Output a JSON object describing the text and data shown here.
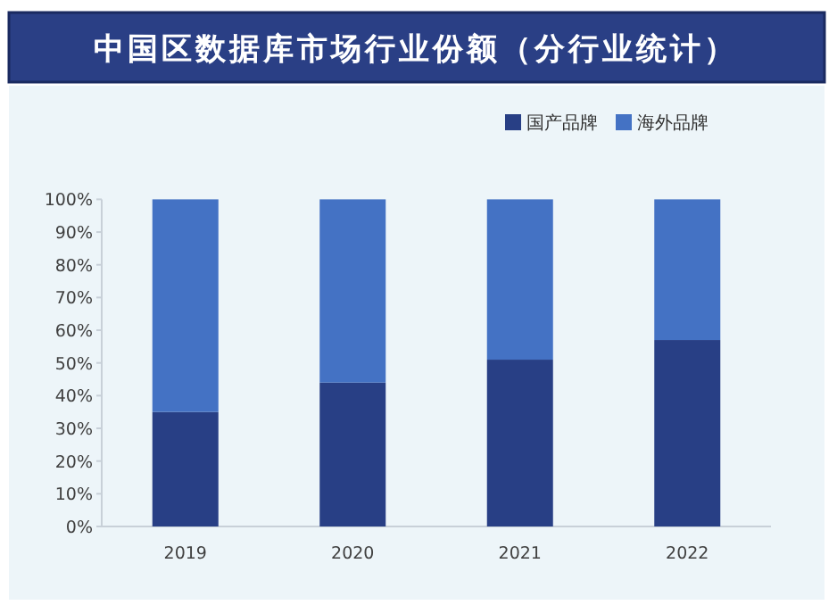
{
  "chart_data": {
    "type": "bar",
    "title": "中国区数据库市场行业份额（分行业统计）",
    "categories": [
      "2019",
      "2020",
      "2021",
      "2022"
    ],
    "stacked": true,
    "series": [
      {
        "name": "国产品牌",
        "color": "#283f85",
        "values": [
          35,
          44,
          51,
          57
        ]
      },
      {
        "name": "海外品牌",
        "color": "#4472c4",
        "values": [
          65,
          56,
          49,
          43
        ]
      }
    ],
    "ylim": [
      0,
      100
    ],
    "yticks": [
      {
        "value": 0,
        "label": "0%"
      },
      {
        "value": 10,
        "label": "10%"
      },
      {
        "value": 20,
        "label": "20%"
      },
      {
        "value": 30,
        "label": "30%"
      },
      {
        "value": 40,
        "label": "40%"
      },
      {
        "value": 50,
        "label": "50%"
      },
      {
        "value": 60,
        "label": "60%"
      },
      {
        "value": 70,
        "label": "70%"
      },
      {
        "value": 80,
        "label": "80%"
      },
      {
        "value": 90,
        "label": "90%"
      },
      {
        "value": 100,
        "label": "100%"
      }
    ],
    "legend": "top right",
    "grid": false
  }
}
